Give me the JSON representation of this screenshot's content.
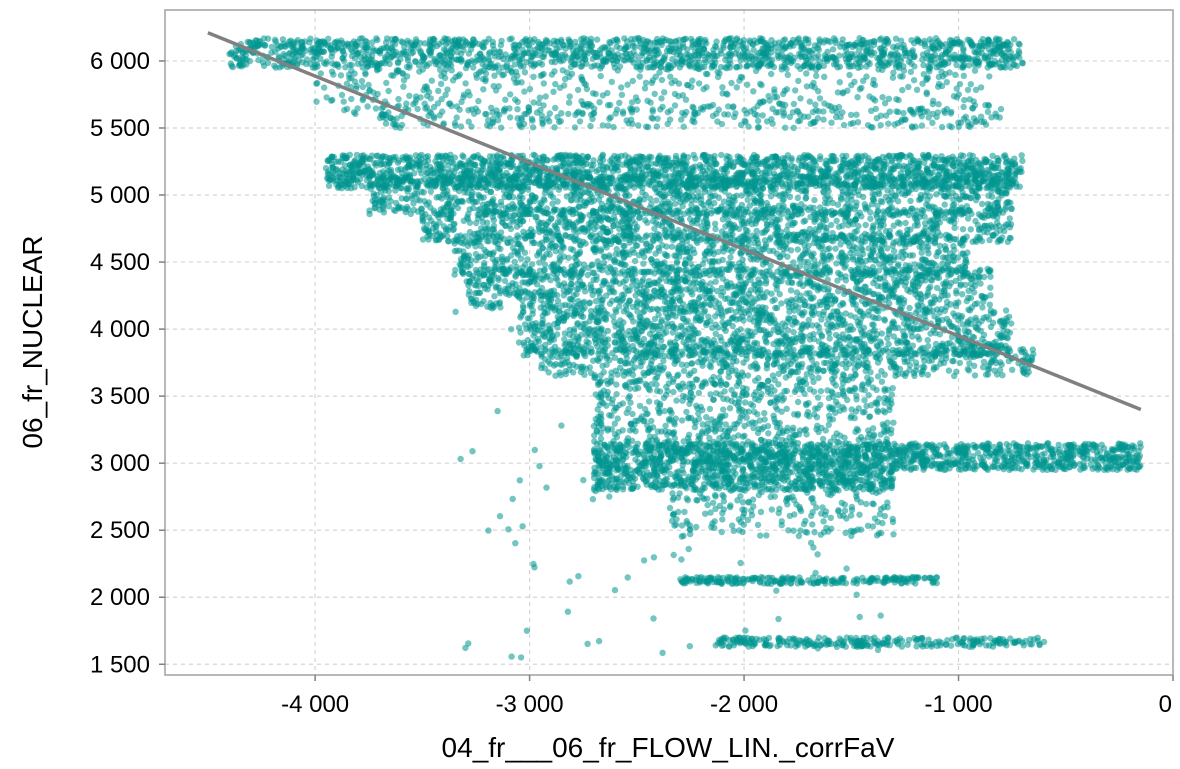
{
  "chart_data": {
    "type": "scatter",
    "xlabel": "04_fr___06_fr_FLOW_LIN._corrFaV",
    "ylabel": "06_fr_NUCLEAR",
    "xlim": [
      -4700,
      0
    ],
    "ylim": [
      1420,
      6380
    ],
    "x_ticks": [
      {
        "value": -4000,
        "label": "-4 000"
      },
      {
        "value": -3000,
        "label": "-3 000"
      },
      {
        "value": -2000,
        "label": "-2 000"
      },
      {
        "value": -1000,
        "label": "-1 000"
      },
      {
        "value": 0,
        "label": "0"
      }
    ],
    "y_ticks": [
      {
        "value": 1500,
        "label": "1 500"
      },
      {
        "value": 2000,
        "label": "2 000"
      },
      {
        "value": 2500,
        "label": "2 500"
      },
      {
        "value": 3000,
        "label": "3 000"
      },
      {
        "value": 3500,
        "label": "3 500"
      },
      {
        "value": 4000,
        "label": "4 000"
      },
      {
        "value": 4500,
        "label": "4 500"
      },
      {
        "value": 5000,
        "label": "5 000"
      },
      {
        "value": 5500,
        "label": "5 500"
      },
      {
        "value": 6000,
        "label": "6 000"
      }
    ],
    "grid": true,
    "point_color": "#009590",
    "trend_color": "#808080",
    "trend_line": {
      "x": [
        -4500,
        -150
      ],
      "y": [
        6210,
        3400
      ]
    },
    "point_bands": [
      {
        "y": [
          5950,
          6170
        ],
        "x": [
          -4400,
          -700
        ],
        "count": 1500
      },
      {
        "y": [
          5600,
          5950
        ],
        "x": [
          -4000,
          -850
        ],
        "count": 450
      },
      {
        "y": [
          5500,
          5650
        ],
        "x": [
          -3700,
          -800
        ],
        "count": 250
      },
      {
        "y": [
          5050,
          5300
        ],
        "x": [
          -3950,
          -700
        ],
        "count": 1800
      },
      {
        "y": [
          4850,
          5150
        ],
        "x": [
          -3750,
          -750
        ],
        "count": 1100
      },
      {
        "y": [
          4650,
          4900
        ],
        "x": [
          -3500,
          -750
        ],
        "count": 900
      },
      {
        "y": [
          4400,
          4700
        ],
        "x": [
          -3350,
          -950
        ],
        "count": 850
      },
      {
        "y": [
          4150,
          4450
        ],
        "x": [
          -3300,
          -850
        ],
        "count": 950
      },
      {
        "y": [
          3800,
          4150
        ],
        "x": [
          -3050,
          -750
        ],
        "count": 1100
      },
      {
        "y": [
          3650,
          3850
        ],
        "x": [
          -2950,
          -650
        ],
        "count": 500
      },
      {
        "y": [
          3150,
          3650
        ],
        "x": [
          -2700,
          -1300
        ],
        "count": 550
      },
      {
        "y": [
          2950,
          3150
        ],
        "x": [
          -2700,
          -150
        ],
        "count": 1400
      },
      {
        "y": [
          2800,
          2950
        ],
        "x": [
          -2700,
          -1300
        ],
        "count": 500
      },
      {
        "y": [
          2450,
          2800
        ],
        "x": [
          -2350,
          -1300
        ],
        "count": 180
      },
      {
        "y": [
          2100,
          2150
        ],
        "x": [
          -2300,
          -1100
        ],
        "count": 220
      },
      {
        "y": [
          1630,
          1700
        ],
        "x": [
          -2150,
          -600
        ],
        "count": 260
      },
      {
        "y": [
          1500,
          4500
        ],
        "x": [
          -3400,
          -1300
        ],
        "count": 120
      }
    ]
  }
}
